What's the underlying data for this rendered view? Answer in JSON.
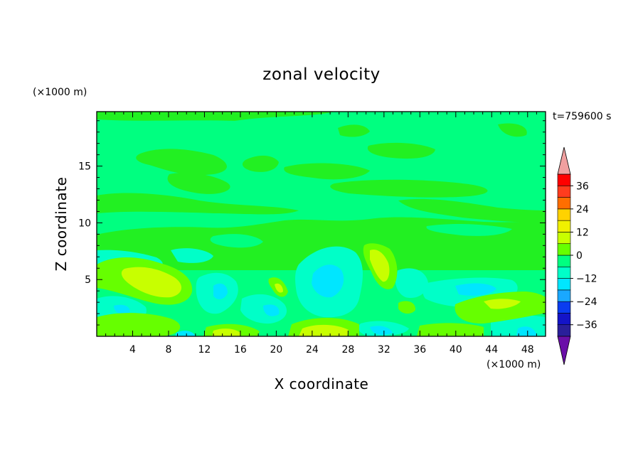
{
  "chart_data": {
    "type": "contour",
    "title": "zonal velocity",
    "xlabel": "X coordinate",
    "ylabel": "Z coordinate",
    "x_unit": "(×1000 m)",
    "y_unit": "(×1000 m)",
    "time_label": "t=759600 s",
    "xlim": [
      0,
      50
    ],
    "ylim": [
      0,
      19.8
    ],
    "x_ticks": [
      4,
      8,
      12,
      16,
      20,
      24,
      28,
      32,
      36,
      40,
      44,
      48
    ],
    "y_ticks": [
      5,
      10,
      15
    ],
    "colorbar": {
      "min": -42,
      "max": 42,
      "step": 6,
      "labeled_levels": [
        36,
        24,
        12,
        0,
        -12,
        -24,
        -36
      ],
      "extend": "both",
      "colors_low_to_high": [
        "#6a0fa8",
        "#2a1f9a",
        "#1414c8",
        "#0a3cf0",
        "#0a78f0",
        "#1aa8ff",
        "#00e6ff",
        "#00ffc8",
        "#00ff80",
        "#22f022",
        "#66ff00",
        "#c8ff00",
        "#f0f000",
        "#ffd200",
        "#ffa000",
        "#ff6e00",
        "#ff3c1e",
        "#ff0000",
        "#f0a0a0"
      ]
    },
    "field_levels": [
      {
        "level": 0,
        "color": "#00ff80"
      },
      {
        "level": 3,
        "color": "#22f022"
      },
      {
        "level": 6,
        "color": "#66ff00"
      },
      {
        "level": 9,
        "color": "#c8ff00"
      },
      {
        "level": 12,
        "color": "#f0f000"
      },
      {
        "level": -3,
        "color": "#00ffc8"
      },
      {
        "level": -6,
        "color": "#00e6ff"
      },
      {
        "level": -9,
        "color": "#1aa8ff"
      }
    ]
  }
}
